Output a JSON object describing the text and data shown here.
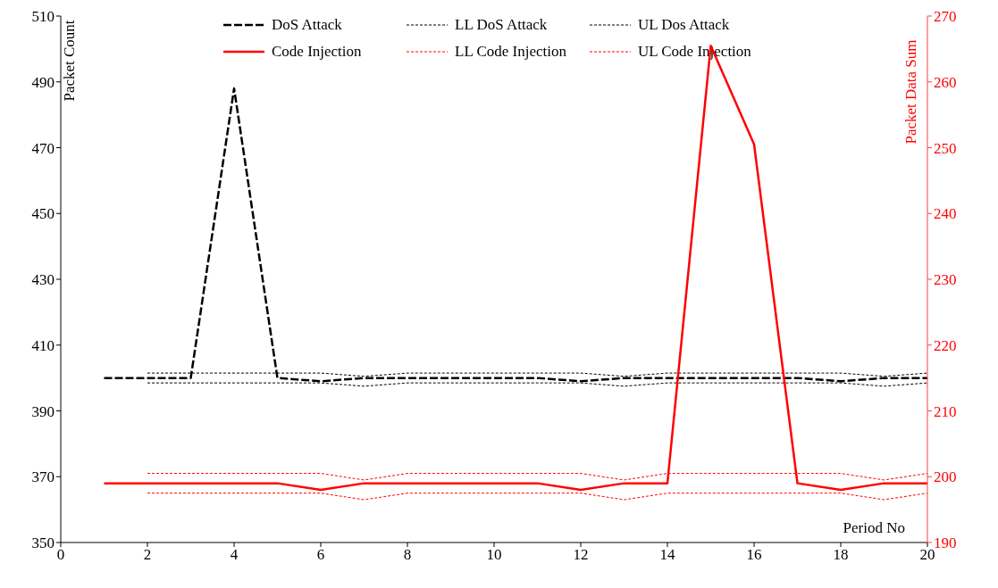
{
  "chart_data": {
    "type": "line",
    "xlabel": "Period No",
    "ylabel": "Packet Count",
    "y2label": "Packet Data Sum",
    "x": [
      1,
      2,
      3,
      4,
      5,
      6,
      7,
      8,
      9,
      10,
      11,
      12,
      13,
      14,
      15,
      16,
      17,
      18,
      19,
      20
    ],
    "xlim": [
      0,
      20
    ],
    "xticks": [
      0,
      2,
      4,
      6,
      8,
      10,
      12,
      14,
      16,
      18,
      20
    ],
    "ylim": [
      350,
      510
    ],
    "yticks": [
      350,
      370,
      390,
      410,
      430,
      450,
      470,
      490,
      510
    ],
    "y2lim": [
      190,
      270
    ],
    "y2ticks": [
      190,
      200,
      210,
      220,
      230,
      240,
      250,
      260,
      270
    ],
    "grid": false,
    "legend": "top",
    "marker": "none",
    "series": [
      {
        "name": "DoS Attack",
        "color": "#000000",
        "line_style": "dashed",
        "values": [
          400,
          400,
          400,
          488,
          400,
          399,
          400,
          400,
          400,
          400,
          400,
          399,
          400,
          400,
          400,
          400,
          400,
          399,
          400,
          400
        ]
      },
      {
        "name": "LL DoS Attack",
        "color": "#000000",
        "line_style": "dotted",
        "values": [
          null,
          398.5,
          398.5,
          398.5,
          398.5,
          398.5,
          397.5,
          398.5,
          398.5,
          398.5,
          398.5,
          398.5,
          397.5,
          398.5,
          398.5,
          398.5,
          398.5,
          398.5,
          397.5,
          398.5
        ]
      },
      {
        "name": "UL Dos Attack",
        "color": "#000000",
        "line_style": "dotted",
        "values": [
          null,
          401.5,
          401.5,
          401.5,
          401.5,
          401.5,
          400.5,
          401.5,
          401.5,
          401.5,
          401.5,
          401.5,
          400.5,
          401.5,
          401.5,
          401.5,
          401.5,
          401.5,
          400.5,
          401.5
        ]
      },
      {
        "name": "Code Injection",
        "color": "#ff0000",
        "line_style": "solid",
        "axis": "y2",
        "values": [
          199,
          199,
          199,
          199,
          199,
          198,
          199,
          199,
          199,
          199,
          199,
          198,
          199,
          199,
          265.5,
          250.5,
          199,
          198,
          199,
          199
        ]
      },
      {
        "name": "LL Code Injection",
        "color": "#ff0000",
        "line_style": "dotted",
        "axis": "y2",
        "values": [
          null,
          197.5,
          197.5,
          197.5,
          197.5,
          197.5,
          196.5,
          197.5,
          197.5,
          197.5,
          197.5,
          197.5,
          196.5,
          197.5,
          197.5,
          197.5,
          197.5,
          197.5,
          196.5,
          197.5
        ]
      },
      {
        "name": "UL Code Injection",
        "color": "#ff0000",
        "line_style": "dotted",
        "axis": "y2",
        "values": [
          null,
          200.5,
          200.5,
          200.5,
          200.5,
          200.5,
          199.5,
          200.5,
          200.5,
          200.5,
          200.5,
          200.5,
          199.5,
          200.5,
          200.5,
          200.5,
          200.5,
          200.5,
          199.5,
          200.5
        ]
      }
    ]
  }
}
